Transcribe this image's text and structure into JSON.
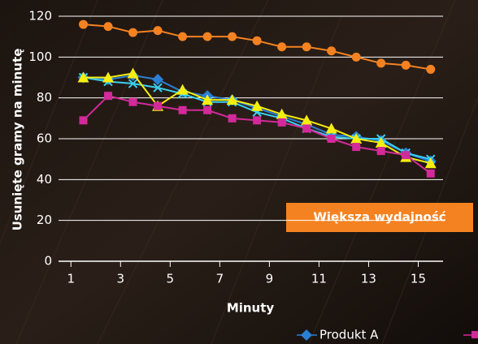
{
  "chart_data": {
    "type": "line",
    "y_label": "Usunięte gramy na minutę",
    "x_label": "Minuty",
    "annotation": "Większa wydajność",
    "xlim": [
      0.5,
      16
    ],
    "xticks": [
      1,
      3,
      5,
      7,
      9,
      11,
      13,
      15
    ],
    "ylim": [
      0,
      120
    ],
    "yticks": [
      0,
      20,
      40,
      60,
      80,
      100,
      120
    ],
    "grid": true,
    "x": [
      1.5,
      2.5,
      3.5,
      4.5,
      5.5,
      6.5,
      7.5,
      8.5,
      9.5,
      10.5,
      11.5,
      12.5,
      13.5,
      14.5,
      15.5
    ],
    "series": [
      {
        "color": "#f58220",
        "marker": "circle",
        "values": [
          116,
          115,
          112,
          113,
          110,
          110,
          110,
          108,
          105,
          105,
          103,
          100,
          97,
          96,
          94
        ]
      },
      {
        "name": "Produkt A",
        "color": "#2a7fd4",
        "marker": "diamond",
        "values": [
          90,
          89,
          91,
          89,
          83,
          81,
          79,
          75,
          71,
          67,
          62,
          61,
          59,
          53,
          49
        ]
      },
      {
        "color": "#3ad0f0",
        "marker": "x",
        "values": [
          90,
          88,
          87,
          85,
          82,
          78,
          78,
          73,
          70,
          65,
          61,
          60,
          60,
          53,
          50
        ]
      },
      {
        "color": "#f5ee10",
        "marker": "triangle",
        "values": [
          90,
          90,
          92,
          76,
          84,
          79,
          79,
          76,
          72,
          69,
          65,
          60,
          58,
          51,
          48
        ]
      },
      {
        "color": "#d22a9a",
        "marker": "square",
        "values": [
          69,
          81,
          78,
          76,
          74,
          74,
          70,
          69,
          68,
          65,
          60,
          56,
          54,
          52,
          43
        ]
      }
    ]
  }
}
